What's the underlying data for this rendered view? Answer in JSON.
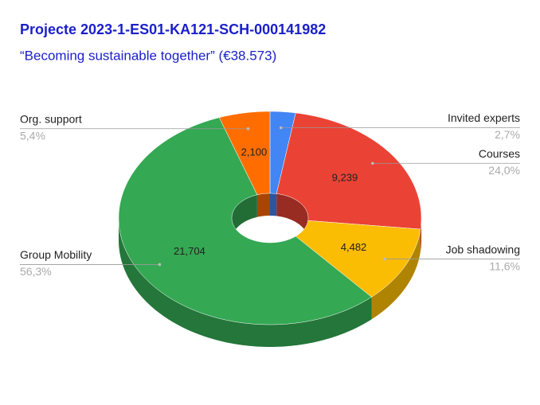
{
  "chart_data": {
    "type": "donut3d",
    "title": "Projecte 2023-1-ES01-KA121-SCH-000141982",
    "subtitle": "“Becoming sustainable together” (€38.573)",
    "categories": [
      "Invited experts",
      "Courses",
      "Job shadowing",
      "Group Mobility",
      "Org. support"
    ],
    "values": [
      1048,
      9239,
      4482,
      21704,
      2100
    ],
    "value_labels": [
      null,
      "9,239",
      "4,482",
      "21,704",
      "2,100"
    ],
    "percent_labels": [
      "2,7%",
      "24,0%",
      "11,6%",
      "56,3%",
      "5,4%"
    ],
    "colors": [
      "#4285f4",
      "#ea4335",
      "#fbbc04",
      "#34a853",
      "#ff6d01"
    ]
  }
}
